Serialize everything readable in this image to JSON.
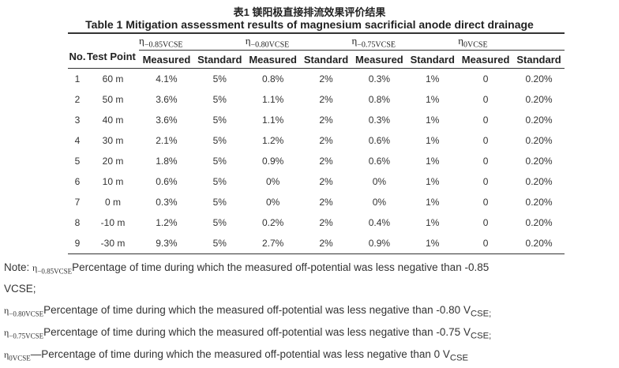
{
  "title_cn": "表1 镁阳极直接排流效果评价结果",
  "title_en": "Table 1 Mitigation assessment results of magnesium sacrificial anode direct drainage",
  "headers": {
    "no": "No.",
    "point": "Test Point",
    "eta": "η",
    "groups": [
      "−0.85VCSE",
      "−0.80VCSE",
      "−0.75VCSE",
      "0VCSE"
    ],
    "measured": "Measured",
    "standard": "Standard"
  },
  "rows": [
    [
      "1",
      "60 m",
      "4.1%",
      "5%",
      "0.8%",
      "2%",
      "0.3%",
      "1%",
      "0",
      "0.20%"
    ],
    [
      "2",
      "50 m",
      "3.6%",
      "5%",
      "1.1%",
      "2%",
      "0.8%",
      "1%",
      "0",
      "0.20%"
    ],
    [
      "3",
      "40 m",
      "3.6%",
      "5%",
      "1.1%",
      "2%",
      "0.3%",
      "1%",
      "0",
      "0.20%"
    ],
    [
      "4",
      "30 m",
      "2.1%",
      "5%",
      "1.2%",
      "2%",
      "0.6%",
      "1%",
      "0",
      "0.20%"
    ],
    [
      "5",
      "20 m",
      "1.8%",
      "5%",
      "0.9%",
      "2%",
      "0.6%",
      "1%",
      "0",
      "0.20%"
    ],
    [
      "6",
      "10 m",
      "0.6%",
      "5%",
      "0%",
      "2%",
      "0%",
      "1%",
      "0",
      "0.20%"
    ],
    [
      "7",
      "0 m",
      "0.3%",
      "5%",
      "0%",
      "2%",
      "0%",
      "1%",
      "0",
      "0.20%"
    ],
    [
      "8",
      "-10 m",
      "1.2%",
      "5%",
      "0.2%",
      "2%",
      "0.4%",
      "1%",
      "0",
      "0.20%"
    ],
    [
      "9",
      "-30 m",
      "9.3%",
      "5%",
      "2.7%",
      "2%",
      "0.9%",
      "1%",
      "0",
      "0.20%"
    ]
  ],
  "notes": [
    {
      "prefix": "Note: ",
      "sym": "−0.85VCSE",
      "text": "Percentage of time during which the measured off-potential was less negative than -0.85",
      "tail": "VCSE;"
    },
    {
      "sym": "−0.80VCSE",
      "text": "Percentage of time during which the measured off-potential was less negative than -0.80 V",
      "unit": "CSE;"
    },
    {
      "sym": "−0.75VCSE",
      "text": "Percentage of time during which the measured off-potential was less negative than -0.75 V",
      "unit": "CSE;"
    },
    {
      "sym": "0VCSE",
      "text": "—Percentage of time during which the measured off-potential was less negative than 0 V",
      "unit": "CSE"
    }
  ]
}
